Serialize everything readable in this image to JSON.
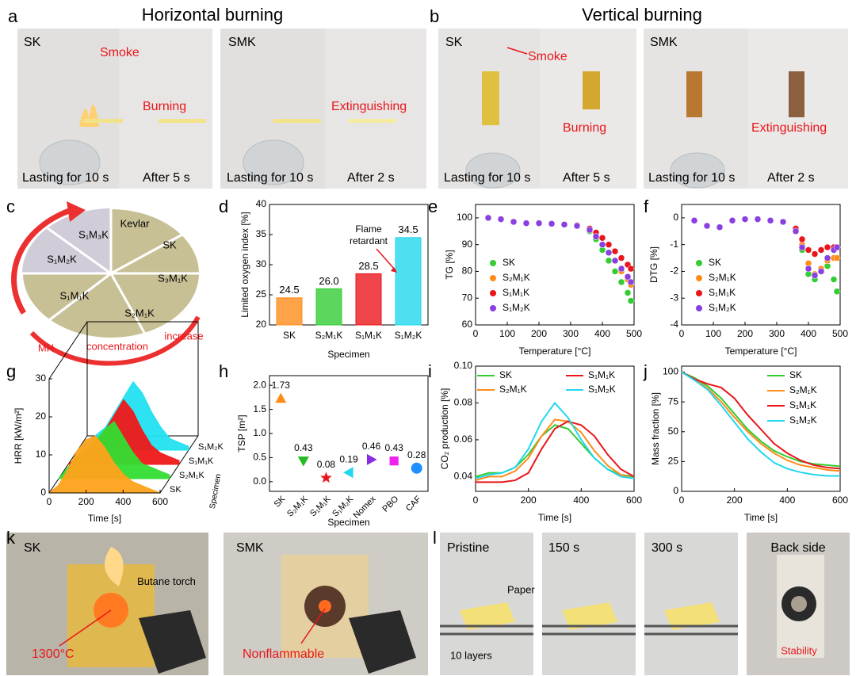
{
  "panels": {
    "a": {
      "letter": "a",
      "title": "Horizontal burning",
      "sk": "SK",
      "smoke": "Smoke",
      "burning": "Burning",
      "sk_t1": "Lasting for 10 s",
      "sk_t2": "After 5 s",
      "smk": "SMK",
      "extinguishing": "Extinguishing",
      "smk_t1": "Lasting for 10 s",
      "smk_t2": "After 2 s"
    },
    "b": {
      "letter": "b",
      "title": "Vertical burning",
      "sk": "SK",
      "smoke": "Smoke",
      "burning": "Burning",
      "sk_t1": "Lasting for 10 s",
      "sk_t2": "After 5 s",
      "smk": "SMK",
      "extinguishing": "Extinguishing",
      "smk_t1": "Lasting for 10 s",
      "smk_t2": "After 2 s"
    },
    "c": {
      "letter": "c",
      "segments": [
        "Kevlar",
        "SK",
        "S₃M₁K",
        "S₂M₁K",
        "S₁M₁K",
        "S₁M₂K",
        "S₁M₃K"
      ],
      "arrow_words": [
        "MH",
        "concentration",
        "increase"
      ]
    },
    "d": {
      "letter": "d"
    },
    "e": {
      "letter": "e"
    },
    "f": {
      "letter": "f"
    },
    "g": {
      "letter": "g"
    },
    "h": {
      "letter": "h"
    },
    "i": {
      "letter": "i"
    },
    "j": {
      "letter": "j"
    },
    "k": {
      "letter": "k",
      "sk": "SK",
      "torch": "Butane torch",
      "temperature": "1300°C",
      "smk": "SMK",
      "nonflammable": "Nonflammable"
    },
    "l": {
      "letter": "l",
      "pristine": "Pristine",
      "t150": "150 s",
      "t300": "300 s",
      "back_side": "Back side",
      "paper": "Paper",
      "layers": "10 layers",
      "stability": "Stability"
    }
  },
  "chart_data": [
    {
      "type": "bar",
      "ylabel": "Limited oxygen index [%]",
      "xlabel": "Specimen",
      "categories": [
        "SK",
        "S₂M₁K",
        "S₁M₁K",
        "S₁M₂K"
      ],
      "values": [
        24.5,
        26.0,
        28.5,
        34.5
      ],
      "value_labels": [
        "24.5",
        "26.0",
        "28.5",
        "34.5"
      ],
      "colors": [
        "#ff8c1a",
        "#33cc33",
        "#e8161b",
        "#22d7ee"
      ],
      "ylim": [
        20,
        40
      ],
      "yticks": [
        20,
        25,
        30,
        35,
        40
      ],
      "annotation": [
        "Flame",
        "retardant"
      ]
    },
    {
      "type": "scatter",
      "ylabel": "TG [%]",
      "xlabel": "Temperature [°C]",
      "xlim": [
        0,
        500
      ],
      "xticks": [
        0,
        100,
        200,
        300,
        400,
        500
      ],
      "ylim": [
        60,
        105
      ],
      "yticks": [
        60,
        70,
        80,
        90,
        100
      ],
      "legend": "lower left",
      "x": [
        40,
        80,
        120,
        160,
        200,
        240,
        280,
        320,
        360,
        380,
        400,
        420,
        440,
        460,
        480,
        490
      ],
      "series": [
        {
          "name": "SK",
          "color": "#33cc33",
          "values": [
            100,
            99.5,
            98.5,
            98,
            98,
            97.8,
            97.5,
            97,
            95,
            92,
            88,
            84,
            80,
            76,
            72,
            69
          ]
        },
        {
          "name": "S₂M₁K",
          "color": "#ff8c1a",
          "values": [
            100,
            99.5,
            98.5,
            98,
            98,
            97.8,
            97.5,
            97,
            95.5,
            93,
            90,
            87,
            84,
            80,
            77,
            75
          ]
        },
        {
          "name": "S₁M₁K",
          "color": "#e8161b",
          "values": [
            100,
            99.5,
            98.5,
            98,
            98,
            97.8,
            97.5,
            97.2,
            96,
            94.5,
            92.5,
            90,
            87.5,
            85,
            82.5,
            81
          ]
        },
        {
          "name": "S₁M₂K",
          "color": "#8a3fe0",
          "values": [
            100,
            99.5,
            98.5,
            98,
            98,
            97.8,
            97.5,
            97,
            95.5,
            93,
            90,
            87,
            84,
            81,
            78,
            76
          ]
        }
      ]
    },
    {
      "type": "scatter",
      "ylabel": "DTG [%]",
      "xlabel": "Temperature [°C]",
      "xlim": [
        0,
        500
      ],
      "xticks": [
        0,
        100,
        200,
        300,
        400,
        500
      ],
      "ylim": [
        -4,
        0.5
      ],
      "yticks": [
        -4,
        -3,
        -2,
        -1,
        0
      ],
      "legend": "lower left",
      "x": [
        40,
        80,
        120,
        160,
        200,
        240,
        280,
        320,
        360,
        380,
        400,
        420,
        440,
        460,
        480,
        490
      ],
      "series": [
        {
          "name": "SK",
          "color": "#33cc33",
          "values": [
            -0.1,
            -0.3,
            -0.35,
            -0.1,
            -0.05,
            -0.05,
            -0.1,
            -0.15,
            -0.5,
            -1.2,
            -2.1,
            -2.3,
            -2.0,
            -1.8,
            -2.3,
            -2.75
          ]
        },
        {
          "name": "S₂M₁K",
          "color": "#ff8c1a",
          "values": [
            -0.1,
            -0.3,
            -0.35,
            -0.1,
            -0.05,
            -0.05,
            -0.1,
            -0.15,
            -0.5,
            -1.0,
            -1.7,
            -2.1,
            -1.9,
            -1.6,
            -1.5,
            -1.5
          ]
        },
        {
          "name": "S₁M₁K",
          "color": "#e8161b",
          "values": [
            -0.1,
            -0.3,
            -0.35,
            -0.1,
            -0.05,
            -0.05,
            -0.1,
            -0.15,
            -0.4,
            -0.8,
            -1.2,
            -1.35,
            -1.2,
            -1.1,
            -1.1,
            -1.1
          ]
        },
        {
          "name": "S₁M₂K",
          "color": "#8a3fe0",
          "values": [
            -0.1,
            -0.3,
            -0.35,
            -0.1,
            -0.05,
            -0.05,
            -0.1,
            -0.15,
            -0.5,
            -1.1,
            -1.9,
            -2.15,
            -2.0,
            -1.5,
            -1.2,
            -1.1
          ]
        }
      ]
    },
    {
      "type": "area",
      "ylabel": "HRR [kW/m²]",
      "xlabel": "Time [s]",
      "zlabel": "Specimen",
      "xlim": [
        0,
        600
      ],
      "xticks": [
        0,
        200,
        400,
        600
      ],
      "ylim": [
        0,
        30
      ],
      "yticks": [
        0,
        10,
        20,
        30
      ],
      "x": [
        0,
        50,
        100,
        150,
        200,
        250,
        300,
        350,
        400,
        450,
        500,
        550,
        600
      ],
      "series": [
        {
          "name": "SK",
          "color": "#ffa21a",
          "values": [
            0,
            2,
            6,
            11,
            14,
            15,
            12,
            8,
            5,
            3,
            2,
            1,
            0
          ]
        },
        {
          "name": "S₂M₁K",
          "color": "#33dd33",
          "values": [
            0,
            3,
            6,
            8,
            10,
            13,
            15,
            11,
            7,
            4,
            3,
            2,
            1
          ]
        },
        {
          "name": "S₁M₁K",
          "color": "#f01818",
          "values": [
            0,
            2,
            4,
            6,
            9,
            13,
            17,
            14,
            9,
            5,
            3,
            2,
            1
          ]
        },
        {
          "name": "S₁M₂K",
          "color": "#22e0f0",
          "values": [
            0,
            2,
            4,
            6,
            10,
            14,
            18,
            15,
            10,
            6,
            3,
            2,
            1
          ]
        }
      ]
    },
    {
      "type": "scatter",
      "ylabel": "TSP [m²]",
      "xlabel": "Specimen",
      "categories": [
        "SK",
        "S₂M₁K",
        "S₁M₁K",
        "S₁M₂K",
        "Nomex",
        "PBO",
        "CAF"
      ],
      "values": [
        1.73,
        0.43,
        0.08,
        0.19,
        0.46,
        0.43,
        0.28
      ],
      "colors": [
        "#ff8c1a",
        "#22bb22",
        "#e8161b",
        "#22d7ee",
        "#8a2be2",
        "#f020f0",
        "#1e8fff"
      ],
      "markers": [
        "triangle-up",
        "triangle-down",
        "star",
        "triangle-left",
        "triangle-right",
        "square",
        "circle"
      ],
      "ylim": [
        -0.2,
        2.2
      ],
      "yticks": [
        {
          "value": 0,
          "label": "0.0"
        },
        {
          "value": 0.5,
          "label": "0.5"
        },
        {
          "value": 1,
          "label": "1.0"
        },
        {
          "value": 1.5,
          "label": "1.5"
        },
        {
          "value": 2,
          "label": "2.0"
        }
      ]
    },
    {
      "type": "line",
      "ylabel": "CO₂ production [%]",
      "xlabel": "Time [s]",
      "xlim": [
        0,
        600
      ],
      "xticks": [
        0,
        200,
        400,
        600
      ],
      "ylim": [
        0.032,
        0.1
      ],
      "yticks": [
        0.04,
        0.06,
        0.08,
        {
          "value": 0.1,
          "label": "0.10"
        }
      ],
      "legend": "upper",
      "x": [
        0,
        50,
        100,
        150,
        200,
        250,
        300,
        350,
        400,
        450,
        500,
        550,
        600
      ],
      "series": [
        {
          "name": "SK",
          "color": "#33cc33",
          "values": [
            0.04,
            0.042,
            0.042,
            0.045,
            0.052,
            0.062,
            0.068,
            0.066,
            0.058,
            0.05,
            0.044,
            0.041,
            0.04
          ]
        },
        {
          "name": "S₂M₁K",
          "color": "#ff8c1a",
          "values": [
            0.038,
            0.04,
            0.04,
            0.043,
            0.05,
            0.062,
            0.071,
            0.07,
            0.064,
            0.054,
            0.046,
            0.041,
            0.039
          ]
        },
        {
          "name": "S₁M₁K",
          "color": "#e8161b",
          "values": [
            0.037,
            0.037,
            0.037,
            0.038,
            0.042,
            0.055,
            0.066,
            0.07,
            0.068,
            0.062,
            0.052,
            0.044,
            0.04
          ]
        },
        {
          "name": "S₁M₂K",
          "color": "#22d7ee",
          "values": [
            0.039,
            0.041,
            0.042,
            0.045,
            0.055,
            0.07,
            0.08,
            0.072,
            0.06,
            0.05,
            0.044,
            0.04,
            0.039
          ]
        }
      ]
    },
    {
      "type": "line",
      "ylabel": "Mass fraction [%]",
      "xlabel": "Time [s]",
      "xlim": [
        0,
        600
      ],
      "xticks": [
        0,
        200,
        400,
        600
      ],
      "ylim": [
        0,
        105
      ],
      "yticks": [
        0,
        25,
        50,
        75,
        100
      ],
      "legend": "upper right",
      "x": [
        0,
        50,
        100,
        150,
        200,
        250,
        300,
        350,
        400,
        450,
        500,
        550,
        600
      ],
      "series": [
        {
          "name": "SK",
          "color": "#33cc33",
          "values": [
            100,
            95,
            88,
            78,
            65,
            52,
            42,
            34,
            29,
            25,
            23,
            22,
            21
          ]
        },
        {
          "name": "S₂M₁K",
          "color": "#ff8c1a",
          "values": [
            100,
            94,
            86,
            75,
            62,
            50,
            40,
            32,
            26,
            22,
            20,
            18,
            17
          ]
        },
        {
          "name": "S₁M₁K",
          "color": "#e8161b",
          "values": [
            100,
            94,
            90,
            87,
            78,
            64,
            52,
            40,
            32,
            26,
            22,
            20,
            19
          ]
        },
        {
          "name": "S₁M₂K",
          "color": "#22d7ee",
          "values": [
            100,
            93,
            85,
            72,
            58,
            44,
            33,
            24,
            19,
            16,
            14,
            13,
            13
          ]
        }
      ]
    }
  ]
}
